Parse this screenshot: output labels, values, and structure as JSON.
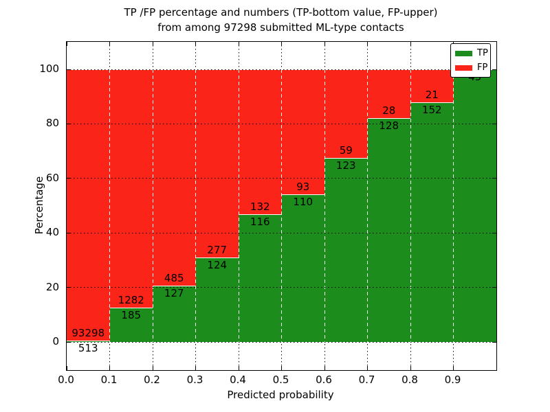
{
  "figure": {
    "title_line1": "TP /FP percentage and numbers (TP-bottom value, FP-upper)",
    "title_line2": "from among 97298 submitted ML-type contacts",
    "xlabel": "Predicted probability",
    "ylabel": "Percentage"
  },
  "legend": {
    "items": [
      {
        "label": "TP",
        "color": "#1c8c1c"
      },
      {
        "label": "FP",
        "color": "#fa2418"
      }
    ]
  },
  "chart_data": {
    "type": "bar",
    "stacked": true,
    "title": "TP /FP percentage and numbers (TP-bottom value, FP-upper) from among 97298 submitted ML-type contacts",
    "xlabel": "Predicted probability",
    "ylabel": "Percentage",
    "total_contacts": 97298,
    "xticks": [
      "0.0",
      "0.1",
      "0.2",
      "0.3",
      "0.4",
      "0.5",
      "0.6",
      "0.7",
      "0.8",
      "0.9"
    ],
    "yticks": [
      0,
      20,
      40,
      60,
      80,
      100
    ],
    "xlim": [
      0.0,
      1.0
    ],
    "ylim": [
      -10,
      110
    ],
    "grid": true,
    "legend_position": "upper right",
    "bin_edges": [
      0.0,
      0.1,
      0.2,
      0.3,
      0.4,
      0.5,
      0.6,
      0.7,
      0.8,
      0.9,
      1.0
    ],
    "series": [
      {
        "name": "TP",
        "color": "#1c8c1c",
        "counts": [
          513,
          185,
          127,
          124,
          116,
          110,
          123,
          128,
          152,
          45
        ]
      },
      {
        "name": "FP",
        "color": "#fa2418",
        "counts": [
          93298,
          1282,
          485,
          277,
          132,
          93,
          59,
          28,
          21,
          0
        ]
      }
    ],
    "tp_percentages": [
      0.55,
      12.61,
      20.75,
      30.92,
      46.77,
      54.19,
      67.58,
      82.05,
      87.86,
      100.0
    ]
  }
}
